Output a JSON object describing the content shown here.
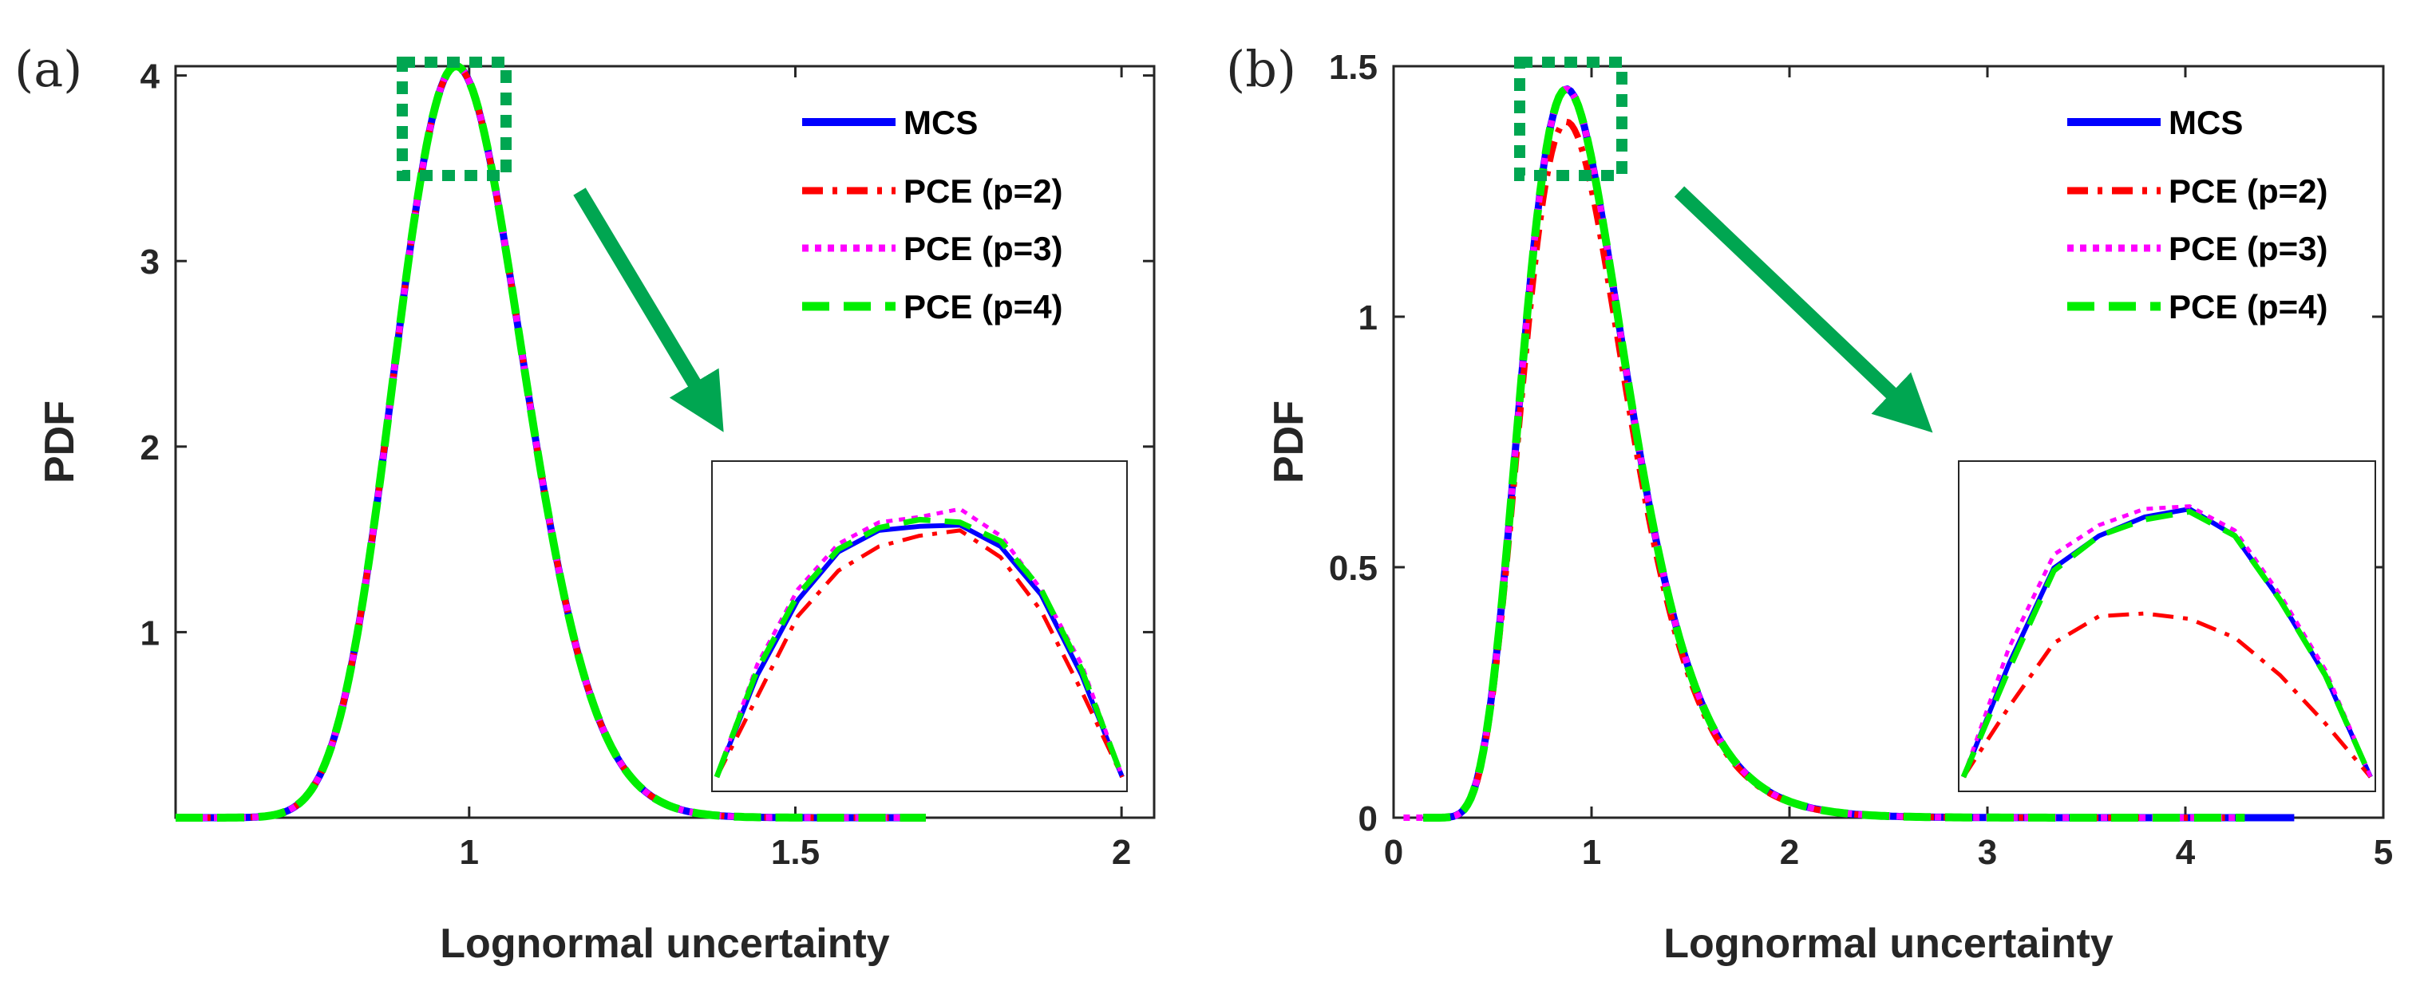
{
  "chart_data": [
    {
      "type": "line",
      "panel_label": "(a)",
      "xlabel": "Lognormal uncertainty",
      "ylabel": "PDF",
      "xlim": [
        0.55,
        2.05
      ],
      "ylim": [
        0,
        4.05
      ],
      "xticks": [
        1,
        1.5,
        2
      ],
      "xtick_labels": [
        "1",
        "1.5",
        "2"
      ],
      "yticks": [
        1,
        2,
        3,
        4
      ],
      "ytick_labels": [
        "1",
        "2",
        "3",
        "4"
      ],
      "legend_position": "top-right",
      "legend": [
        "MCS",
        "PCE (p=2)",
        "PCE (p=3)",
        "PCE (p=4)"
      ],
      "series": [
        {
          "name": "MCS",
          "color": "#0000ff",
          "x_range": [
            0.55,
            1.7
          ],
          "dist": {
            "mu": -0.0102,
            "sigma": 0.1
          }
        },
        {
          "name": "PCE (p=2)",
          "color": "#ff0000",
          "x_range": [
            0.55,
            1.7
          ],
          "dist": {
            "mu": -0.0102,
            "sigma": 0.1
          }
        },
        {
          "name": "PCE (p=3)",
          "color": "#ff00ff",
          "x_range": [
            0.55,
            1.7
          ],
          "dist": {
            "mu": -0.0102,
            "sigma": 0.1
          }
        },
        {
          "name": "PCE (p=4)",
          "color": "#00ee00",
          "x_range": [
            0.55,
            1.7
          ],
          "dist": {
            "mu": -0.0102,
            "sigma": 0.1
          }
        }
      ],
      "zoom_region": {
        "x": [
          0.9,
          1.07
        ],
        "y": [
          3.5,
          4.1
        ]
      },
      "inset": {
        "series": [
          {
            "name": "MCS",
            "values": [
              0,
              0.38,
              0.66,
              0.84,
              0.92,
              0.935,
              0.94,
              0.86,
              0.68,
              0.38,
              0
            ]
          },
          {
            "name": "PCE (p=2)",
            "values": [
              0,
              0.3,
              0.6,
              0.77,
              0.86,
              0.9,
              0.92,
              0.82,
              0.62,
              0.32,
              0
            ]
          },
          {
            "name": "PCE (p=3)",
            "values": [
              0,
              0.42,
              0.7,
              0.87,
              0.95,
              0.97,
              1.0,
              0.9,
              0.7,
              0.42,
              0
            ]
          },
          {
            "name": "PCE (p=4)",
            "values": [
              0,
              0.4,
              0.68,
              0.85,
              0.93,
              0.96,
              0.95,
              0.88,
              0.7,
              0.4,
              0
            ]
          }
        ]
      }
    },
    {
      "type": "line",
      "panel_label": "(b)",
      "xlabel": "Lognormal uncertainty",
      "ylabel": "PDF",
      "xlim": [
        0,
        5
      ],
      "ylim": [
        0,
        1.5
      ],
      "xticks": [
        0,
        1,
        2,
        3,
        4,
        5
      ],
      "xtick_labels": [
        "0",
        "1",
        "2",
        "3",
        "4",
        "5"
      ],
      "yticks": [
        0,
        0.5,
        1,
        1.5
      ],
      "ytick_labels": [
        "0",
        "0.5",
        "1",
        "1.5"
      ],
      "legend_position": "top-right",
      "legend": [
        "MCS",
        "PCE (p=2)",
        "PCE (p=3)",
        "PCE (p=4)"
      ],
      "series": [
        {
          "name": "MCS",
          "color": "#0000ff",
          "x_range": [
            0.15,
            4.55
          ],
          "dist": {
            "mu": -0.0447,
            "sigma": 0.3
          }
        },
        {
          "name": "PCE (p=2)",
          "color": "#ff0000",
          "x_range": [
            0.42,
            4.2
          ],
          "dist": {
            "mu": -0.0447,
            "sigma": 0.3,
            "scale": 0.955
          }
        },
        {
          "name": "PCE (p=3)",
          "color": "#ff00ff",
          "x_range": [
            0.05,
            4.3
          ],
          "dist": {
            "mu": -0.0447,
            "sigma": 0.3
          }
        },
        {
          "name": "PCE (p=4)",
          "color": "#00ee00",
          "x_range": [
            0.15,
            4.3
          ],
          "dist": {
            "mu": -0.0447,
            "sigma": 0.3
          }
        }
      ],
      "zoom_region": {
        "x": [
          0.62,
          1.12
        ],
        "y": [
          1.3,
          1.52
        ]
      },
      "inset": {
        "series": [
          {
            "name": "MCS",
            "values": [
              0,
              0.42,
              0.78,
              0.9,
              0.97,
              1.0,
              0.9,
              0.66,
              0.38,
              0
            ]
          },
          {
            "name": "PCE (p=2)",
            "values": [
              0,
              0.26,
              0.5,
              0.6,
              0.61,
              0.59,
              0.52,
              0.38,
              0.2,
              0
            ]
          },
          {
            "name": "PCE (p=3)",
            "values": [
              0,
              0.48,
              0.83,
              0.94,
              1.0,
              1.01,
              0.92,
              0.68,
              0.4,
              0
            ]
          },
          {
            "name": "PCE (p=4)",
            "values": [
              0,
              0.4,
              0.77,
              0.9,
              0.96,
              0.99,
              0.9,
              0.66,
              0.38,
              0
            ]
          }
        ]
      }
    }
  ],
  "colors": {
    "axis": "#262626",
    "annotation": "#00a651"
  }
}
